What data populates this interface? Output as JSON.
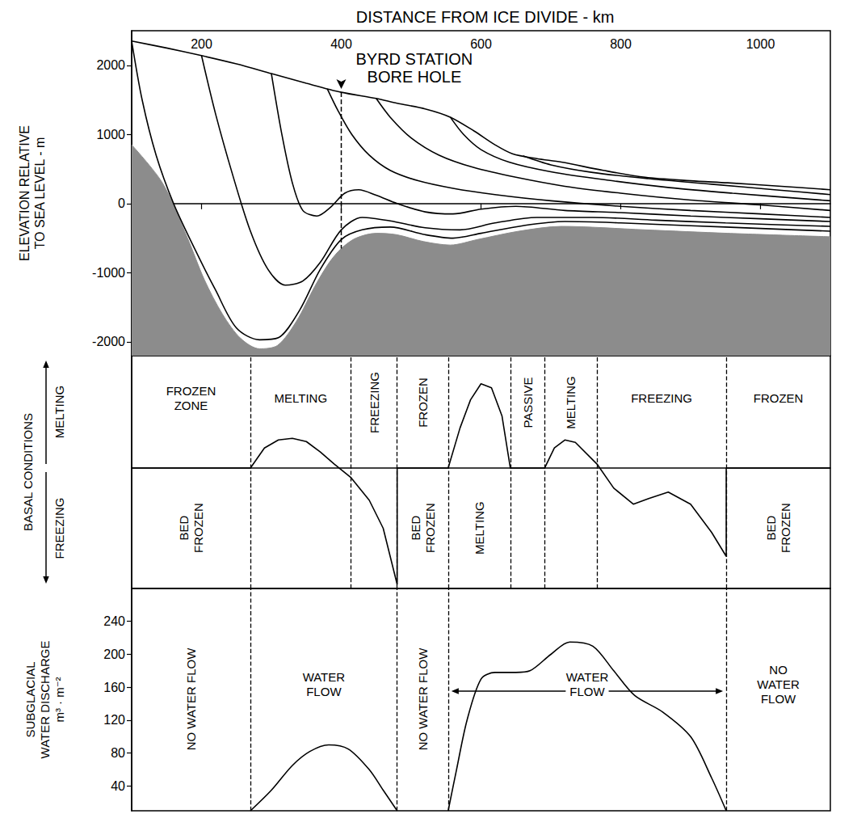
{
  "chart_data": [
    {
      "type": "line",
      "title": "DISTANCE FROM ICE DIVIDE - km",
      "ylabel": "ELEVATION RELATIVE\nTO SEA LEVEL - m",
      "xlim": [
        100,
        1100
      ],
      "xticks": [
        200,
        400,
        600,
        800,
        1000
      ],
      "ylim": [
        -2200,
        2500
      ],
      "yticks": [
        -2000,
        -1000,
        0,
        1000,
        2000
      ],
      "series": [
        {
          "type": "area",
          "color": "#8c8c8c",
          "x": [
            100,
            144,
            180,
            204,
            230,
            256,
            283,
            309,
            336,
            362,
            383,
            400,
            421,
            450,
            479,
            518,
            556,
            595,
            654,
            715,
            835,
            953,
            1100
          ],
          "values": [
            850,
            300,
            -500,
            -1100,
            -1600,
            -1950,
            -2100,
            -2050,
            -1700,
            -1200,
            -850,
            -650,
            -500,
            -430,
            -450,
            -550,
            -600,
            -520,
            -400,
            -330,
            -380,
            -430,
            -480
          ]
        },
        {
          "type": "line",
          "color": "#000000",
          "x": [
            100,
            150,
            200,
            250,
            300,
            350,
            400,
            450,
            480,
            520,
            556,
            590,
            620,
            645,
            680,
            715,
            775,
            835,
            900,
            953,
            1030,
            1100
          ],
          "values": [
            2350,
            2250,
            2140,
            2020,
            1880,
            1740,
            1610,
            1520,
            1450,
            1370,
            1250,
            1050,
            850,
            720,
            650,
            600,
            480,
            380,
            330,
            300,
            250,
            200
          ]
        },
        {
          "type": "line",
          "color": "#000000",
          "x": [
            100,
            115,
            135,
            160,
            190,
            220,
            250,
            283,
            310,
            340,
            370,
            400,
            430,
            470,
            520,
            560,
            600,
            660,
            720,
            800,
            900,
            1000,
            1100
          ],
          "values": [
            2350,
            1500,
            700,
            0,
            -650,
            -1250,
            -1800,
            -1970,
            -1940,
            -1550,
            -950,
            -520,
            -380,
            -340,
            -450,
            -500,
            -430,
            -320,
            -260,
            -280,
            -320,
            -360,
            -400
          ]
        },
        {
          "type": "line",
          "color": "#000000",
          "x": [
            200,
            220,
            245,
            270,
            295,
            320,
            345,
            370,
            400,
            430,
            470,
            520,
            570,
            620,
            680,
            760,
            850,
            950,
            1100
          ],
          "values": [
            2140,
            1300,
            400,
            -400,
            -950,
            -1180,
            -1120,
            -850,
            -380,
            -200,
            -250,
            -350,
            -380,
            -280,
            -200,
            -200,
            -240,
            -280,
            -330
          ]
        },
        {
          "type": "line",
          "color": "#000000",
          "x": [
            300,
            315,
            330,
            345,
            365,
            385,
            405,
            425,
            450,
            480,
            520,
            560,
            600,
            650,
            720,
            800,
            900,
            1000,
            1100
          ],
          "values": [
            1880,
            1000,
            300,
            -100,
            -180,
            -50,
            150,
            200,
            120,
            0,
            -120,
            -150,
            -80,
            -40,
            -100,
            -130,
            -180,
            -220,
            -260
          ]
        },
        {
          "type": "line",
          "color": "#000000",
          "x": [
            380,
            395,
            415,
            440,
            470,
            510,
            560,
            620,
            700,
            800,
            900,
            1000,
            1100
          ],
          "values": [
            1660,
            1350,
            1000,
            700,
            480,
            330,
            220,
            130,
            40,
            -40,
            -100,
            -150,
            -200
          ]
        },
        {
          "type": "line",
          "color": "#000000",
          "x": [
            450,
            470,
            500,
            540,
            590,
            650,
            720,
            800,
            900,
            1000,
            1100
          ],
          "values": [
            1520,
            1250,
            950,
            700,
            520,
            380,
            250,
            150,
            50,
            -20,
            -100
          ]
        },
        {
          "type": "line",
          "color": "#000000",
          "x": [
            556,
            575,
            600,
            640,
            700,
            780,
            870,
            960,
            1100
          ],
          "values": [
            1250,
            1000,
            780,
            600,
            460,
            340,
            230,
            150,
            40
          ]
        },
        {
          "type": "line",
          "color": "#000000",
          "x": [
            660,
            700,
            760,
            840,
            930,
            1020,
            1100
          ],
          "values": [
            690,
            560,
            450,
            360,
            280,
            200,
            130
          ]
        }
      ],
      "annotations": [
        {
          "text": "BYRD STATION\nBORE HOLE",
          "x": 400,
          "line_style": "dashed"
        }
      ]
    },
    {
      "type": "line",
      "ylabel": "BASAL CONDITIONS",
      "ylabel_arrows": {
        "up": "MELTING",
        "down": "FREEZING"
      },
      "xlim": [
        100,
        1100
      ],
      "ylim": [
        -1.5,
        1.4
      ],
      "tick_labels": false,
      "series": [
        {
          "type": "line",
          "color": "#000000",
          "x": [
            100,
            270,
            290,
            310,
            330,
            350,
            370,
            390,
            414,
            440,
            460,
            480,
            480,
            553,
            570,
            585,
            600,
            615,
            630,
            642,
            691,
            705,
            720,
            735,
            766,
            790,
            818,
            840,
            868,
            900,
            930,
            951,
            951,
            1100
          ],
          "values": [
            0,
            0,
            0.25,
            0.35,
            0.37,
            0.33,
            0.2,
            0.05,
            -0.12,
            -0.4,
            -0.75,
            -1.45,
            0,
            0,
            0.5,
            0.85,
            1.05,
            1.0,
            0.65,
            0,
            0,
            0.25,
            0.35,
            0.32,
            0.05,
            -0.25,
            -0.45,
            -0.38,
            -0.3,
            -0.45,
            -0.8,
            -1.1,
            0,
            0
          ]
        }
      ],
      "zones": [
        {
          "from": 100,
          "to": 270,
          "upper": "FROZEN\nZONE",
          "lower": "BED\nFROZEN"
        },
        {
          "from": 270,
          "to": 414,
          "upper": "MELTING"
        },
        {
          "from": 414,
          "to": 480,
          "upper": "FREEZING"
        },
        {
          "from": 480,
          "to": 553,
          "upper": "FROZEN",
          "lower": "BED\nFROZEN"
        },
        {
          "from": 553,
          "to": 642,
          "lower": "MELTING"
        },
        {
          "from": 642,
          "to": 691,
          "upper": "PASSIVE"
        },
        {
          "from": 691,
          "to": 766,
          "upper": "MELTING"
        },
        {
          "from": 766,
          "to": 951,
          "upper": "FREEZING"
        },
        {
          "from": 951,
          "to": 1100,
          "upper": "FROZEN",
          "lower": "BED\nFROZEN"
        }
      ]
    },
    {
      "type": "line",
      "ylabel": "SUBGLACIAL\nWATER DISCHARGE\nm³ · m⁻²",
      "xlim": [
        100,
        1100
      ],
      "ylim": [
        10,
        280
      ],
      "yticks": [
        40,
        80,
        120,
        160,
        200,
        240
      ],
      "tick_labels": "y",
      "series": [
        {
          "type": "line",
          "color": "#000000",
          "x": [
            270,
            300,
            330,
            355,
            382,
            410,
            440,
            460,
            480
          ],
          "values": [
            10,
            35,
            65,
            82,
            90,
            85,
            60,
            35,
            10
          ]
        },
        {
          "type": "line",
          "color": "#000000",
          "x": [
            553,
            565,
            580,
            600,
            620,
            650,
            670,
            700,
            727,
            760,
            790,
            820,
            860,
            900,
            930,
            951
          ],
          "values": [
            10,
            60,
            120,
            170,
            178,
            178,
            180,
            200,
            215,
            210,
            180,
            150,
            130,
            100,
            50,
            10
          ]
        }
      ],
      "zones": [
        {
          "from": 100,
          "to": 270,
          "label": "NO WATER FLOW"
        },
        {
          "from": 270,
          "to": 480,
          "label": "WATER\nFLOW"
        },
        {
          "from": 480,
          "to": 553,
          "label": "NO WATER FLOW"
        },
        {
          "from": 553,
          "to": 951,
          "label": "WATER\nFLOW"
        },
        {
          "from": 951,
          "to": 1100,
          "label": "NO\nWATER\nFLOW"
        }
      ]
    }
  ]
}
